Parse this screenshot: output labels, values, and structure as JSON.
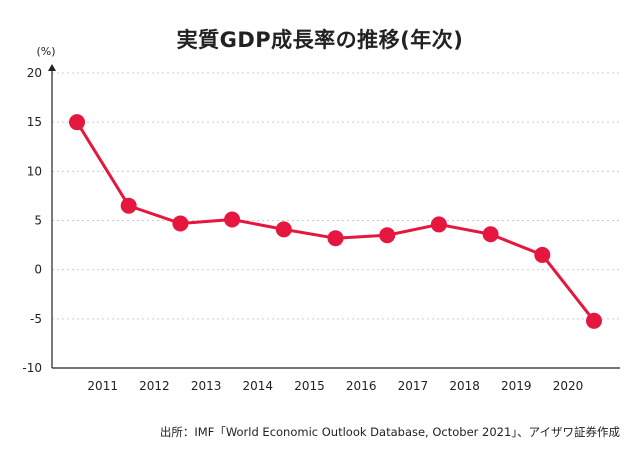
{
  "chart_data": {
    "type": "line",
    "title": "実質GDP成長率の推移(年次)",
    "ylabel": "(%)",
    "xlabel": "",
    "categories": [
      "2011",
      "2012",
      "2013",
      "2014",
      "2015",
      "2016",
      "2017",
      "2018",
      "2019",
      "2020"
    ],
    "x": [
      2010,
      2011,
      2012,
      2013,
      2014,
      2015,
      2016,
      2017,
      2018,
      2019,
      2020
    ],
    "series": [
      {
        "values": [
          15.0,
          6.5,
          4.7,
          5.1,
          4.1,
          3.2,
          3.5,
          4.6,
          3.6,
          1.5,
          -5.2
        ]
      }
    ],
    "ylim": [
      -10,
      20
    ],
    "yticks": [
      20,
      15,
      10,
      5,
      0,
      -5,
      -10
    ],
    "ytick_labels": [
      "20",
      "15",
      "10",
      "5",
      "0",
      "-5",
      "-10"
    ],
    "grid": "horizontal dotted",
    "line_color": "#e5173f",
    "axis_color": "#222222",
    "grid_color": "#cccccc",
    "source": "出所：IMF「World Economic Outlook Database, October 2021」、アイザワ証券作成"
  }
}
